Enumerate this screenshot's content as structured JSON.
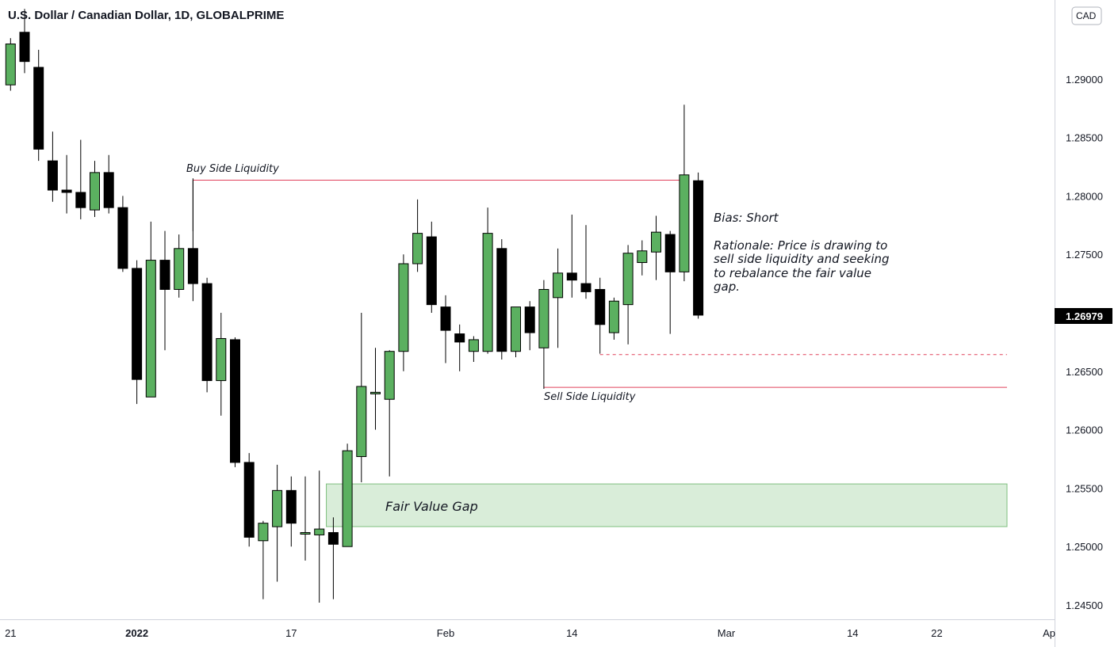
{
  "header": {
    "title": "U.S. Dollar / Canadian Dollar, 1D, GLOBALPRIME"
  },
  "currency_badge": "CAD",
  "last_price_label": "1.26979",
  "colors": {
    "up": "#5bb060",
    "down": "#000000",
    "level_line": "#e0405a",
    "fvg_fill": "#d9edd9",
    "fvg_border": "#7fc07f"
  },
  "chart_data": {
    "type": "candlestick",
    "symbol": "USDCAD",
    "interval": "1D",
    "y_ticks": [
      "1.29000",
      "1.28500",
      "1.28000",
      "1.27500",
      "1.26500",
      "1.26000",
      "1.25500",
      "1.25000",
      "1.24500"
    ],
    "ylim": [
      1.2435,
      1.2995
    ],
    "x_labels": [
      {
        "i": 0,
        "label": "21"
      },
      {
        "i": 9,
        "label": "2022"
      },
      {
        "i": 20,
        "label": "17"
      },
      {
        "i": 31,
        "label": "Feb"
      },
      {
        "i": 40,
        "label": "14"
      },
      {
        "i": 51,
        "label": "Mar"
      },
      {
        "i": 60,
        "label": "14"
      },
      {
        "i": 66,
        "label": "22"
      },
      {
        "i": 74,
        "label": "Ap"
      }
    ],
    "candles": [
      {
        "o": 1.2895,
        "h": 1.2935,
        "l": 1.289,
        "c": 1.293
      },
      {
        "o": 1.294,
        "h": 1.296,
        "l": 1.2905,
        "c": 1.2915
      },
      {
        "o": 1.291,
        "h": 1.2925,
        "l": 1.283,
        "c": 1.284
      },
      {
        "o": 1.283,
        "h": 1.2855,
        "l": 1.2795,
        "c": 1.2805
      },
      {
        "o": 1.2805,
        "h": 1.2835,
        "l": 1.2785,
        "c": 1.2803
      },
      {
        "o": 1.2803,
        "h": 1.2848,
        "l": 1.278,
        "c": 1.279
      },
      {
        "o": 1.2788,
        "h": 1.283,
        "l": 1.2782,
        "c": 1.282
      },
      {
        "o": 1.282,
        "h": 1.2835,
        "l": 1.2785,
        "c": 1.279
      },
      {
        "o": 1.279,
        "h": 1.28,
        "l": 1.2735,
        "c": 1.2738
      },
      {
        "o": 1.2738,
        "h": 1.2745,
        "l": 1.2622,
        "c": 1.2643
      },
      {
        "o": 1.2628,
        "h": 1.2778,
        "l": 1.2628,
        "c": 1.2745
      },
      {
        "o": 1.2745,
        "h": 1.277,
        "l": 1.2668,
        "c": 1.272
      },
      {
        "o": 1.272,
        "h": 1.2767,
        "l": 1.2713,
        "c": 1.2755
      },
      {
        "o": 1.2755,
        "h": 1.2815,
        "l": 1.271,
        "c": 1.2725
      },
      {
        "o": 1.2725,
        "h": 1.273,
        "l": 1.2632,
        "c": 1.2642
      },
      {
        "o": 1.2642,
        "h": 1.27,
        "l": 1.2612,
        "c": 1.2678
      },
      {
        "o": 1.2677,
        "h": 1.2679,
        "l": 1.2568,
        "c": 1.2572
      },
      {
        "o": 1.2572,
        "h": 1.258,
        "l": 1.25,
        "c": 1.2508
      },
      {
        "o": 1.2505,
        "h": 1.2522,
        "l": 1.2455,
        "c": 1.252
      },
      {
        "o": 1.2517,
        "h": 1.257,
        "l": 1.247,
        "c": 1.2548
      },
      {
        "o": 1.2548,
        "h": 1.256,
        "l": 1.25,
        "c": 1.252
      },
      {
        "o": 1.2512,
        "h": 1.256,
        "l": 1.2488,
        "c": 1.2512
      },
      {
        "o": 1.251,
        "h": 1.2565,
        "l": 1.2452,
        "c": 1.2515
      },
      {
        "o": 1.2512,
        "h": 1.2525,
        "l": 1.2455,
        "c": 1.2502
      },
      {
        "o": 1.25,
        "h": 1.2588,
        "l": 1.25,
        "c": 1.2582
      },
      {
        "o": 1.2577,
        "h": 1.27,
        "l": 1.2555,
        "c": 1.2637
      },
      {
        "o": 1.2632,
        "h": 1.267,
        "l": 1.26,
        "c": 1.2632
      },
      {
        "o": 1.2626,
        "h": 1.2668,
        "l": 1.256,
        "c": 1.2667
      },
      {
        "o": 1.2667,
        "h": 1.275,
        "l": 1.265,
        "c": 1.2742
      },
      {
        "o": 1.2742,
        "h": 1.2797,
        "l": 1.2735,
        "c": 1.2768
      },
      {
        "o": 1.2765,
        "h": 1.2778,
        "l": 1.27,
        "c": 1.2707
      },
      {
        "o": 1.2705,
        "h": 1.2715,
        "l": 1.2657,
        "c": 1.2685
      },
      {
        "o": 1.2682,
        "h": 1.269,
        "l": 1.265,
        "c": 1.2675
      },
      {
        "o": 1.2667,
        "h": 1.268,
        "l": 1.2658,
        "c": 1.2677
      },
      {
        "o": 1.2667,
        "h": 1.279,
        "l": 1.2665,
        "c": 1.2768
      },
      {
        "o": 1.2755,
        "h": 1.2763,
        "l": 1.266,
        "c": 1.2667
      },
      {
        "o": 1.2667,
        "h": 1.27,
        "l": 1.2662,
        "c": 1.2705
      },
      {
        "o": 1.2705,
        "h": 1.271,
        "l": 1.2668,
        "c": 1.2683
      },
      {
        "o": 1.267,
        "h": 1.2728,
        "l": 1.2635,
        "c": 1.272
      },
      {
        "o": 1.2713,
        "h": 1.2755,
        "l": 1.267,
        "c": 1.2734
      },
      {
        "o": 1.2734,
        "h": 1.2784,
        "l": 1.2713,
        "c": 1.2728
      },
      {
        "o": 1.2725,
        "h": 1.2775,
        "l": 1.2712,
        "c": 1.2718
      },
      {
        "o": 1.272,
        "h": 1.273,
        "l": 1.2665,
        "c": 1.269
      },
      {
        "o": 1.2683,
        "h": 1.2713,
        "l": 1.2677,
        "c": 1.271
      },
      {
        "o": 1.2707,
        "h": 1.2758,
        "l": 1.2673,
        "c": 1.2751
      },
      {
        "o": 1.2743,
        "h": 1.2762,
        "l": 1.2732,
        "c": 1.2753
      },
      {
        "o": 1.2752,
        "h": 1.2783,
        "l": 1.2728,
        "c": 1.2769
      },
      {
        "o": 1.2767,
        "h": 1.277,
        "l": 1.2682,
        "c": 1.2735
      },
      {
        "o": 1.2735,
        "h": 1.2878,
        "l": 1.2727,
        "c": 1.2818
      },
      {
        "o": 1.2813,
        "h": 1.282,
        "l": 1.2695,
        "c": 1.2698
      }
    ],
    "levels": [
      {
        "name": "buy-side-liquidity",
        "label": "Buy Side Liquidity",
        "price": 1.28135,
        "from_i": 13,
        "to_i": 48,
        "style": "solid"
      },
      {
        "name": "sell-side-liquidity",
        "label": "Sell Side Liquidity",
        "price": 1.26362,
        "from_i": 38,
        "to_i": 71,
        "style": "solid"
      },
      {
        "name": "dashed-level",
        "label": "",
        "price": 1.26643,
        "from_i": 42,
        "to_i": 71,
        "style": "dashed"
      }
    ],
    "zones": [
      {
        "name": "fair-value-gap",
        "label": "Fair Value Gap",
        "top": 1.25536,
        "bottom": 1.25171,
        "from_i": 22.5,
        "to_i": 71
      }
    ],
    "notes": {
      "bias": "Bias: Short",
      "rationale_lines": [
        "Rationale: Price is drawing to",
        "sell side liquidity and seeking",
        "to rebalance the fair value",
        "gap."
      ]
    }
  }
}
